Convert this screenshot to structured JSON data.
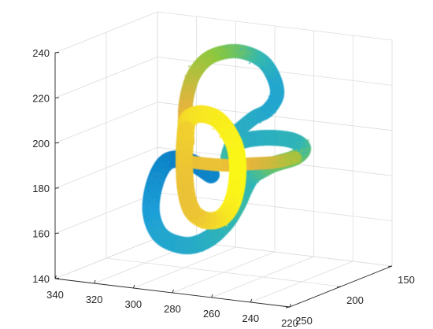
{
  "chart_data": {
    "type": "scatter3d",
    "title": "",
    "xlabel": "",
    "ylabel": "",
    "zlabel": "",
    "grid": true,
    "box": "open",
    "colormap": "parula",
    "colormap_stops": [
      "#0072bd",
      "#1ea0d8",
      "#33b8b0",
      "#8cc83c",
      "#e6b43c",
      "#f5dc28",
      "#fbfa16"
    ],
    "xlim": [
      220,
      340
    ],
    "ylim": [
      150,
      250
    ],
    "zlim": [
      140,
      240
    ],
    "x_ticks": [
      {
        "value": 220,
        "label": "220"
      },
      {
        "value": 240,
        "label": "240"
      },
      {
        "value": 260,
        "label": "260"
      },
      {
        "value": 280,
        "label": "280"
      },
      {
        "value": 300,
        "label": "300"
      },
      {
        "value": 320,
        "label": "320"
      },
      {
        "value": 340,
        "label": "340"
      }
    ],
    "y_ticks": [
      {
        "value": 150,
        "label": "150"
      },
      {
        "value": 200,
        "label": "200"
      },
      {
        "value": 250,
        "label": "250"
      }
    ],
    "z_ticks": [
      {
        "value": 140,
        "label": "140"
      },
      {
        "value": 160,
        "label": "160"
      },
      {
        "value": 180,
        "label": "180"
      },
      {
        "value": 200,
        "label": "200"
      },
      {
        "value": 220,
        "label": "220"
      },
      {
        "value": 240,
        "label": "240"
      }
    ],
    "description_of_object": "thick colored tube-like point cloud forming an interlocking knot"
  }
}
